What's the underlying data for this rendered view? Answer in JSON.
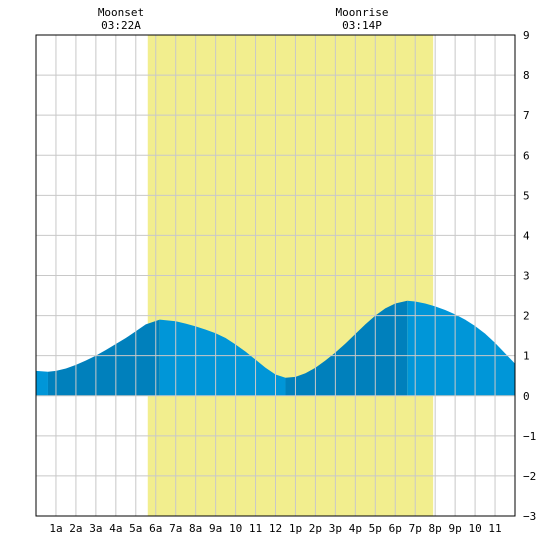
{
  "moon_events": [
    {
      "label": "Moonset",
      "time": "03:22A",
      "hour": 3.37
    },
    {
      "label": "Moonrise",
      "time": "03:14P",
      "hour": 15.23
    }
  ],
  "chart_data": {
    "type": "area",
    "title": "",
    "xlabel": "",
    "ylabel": "",
    "xlim": [
      0,
      24
    ],
    "ylim": [
      -3,
      9
    ],
    "grid": true,
    "x_tick_labels": [
      "1a",
      "2a",
      "3a",
      "4a",
      "5a",
      "6a",
      "7a",
      "8a",
      "9a",
      "10",
      "11",
      "12",
      "1p",
      "2p",
      "3p",
      "4p",
      "5p",
      "6p",
      "7p",
      "8p",
      "9p",
      "10",
      "11"
    ],
    "y_tick_labels": [
      "9",
      "8",
      "7",
      "6",
      "5",
      "4",
      "3",
      "2",
      "1",
      "0",
      "−1",
      "−2",
      "−3"
    ],
    "daylight": {
      "start_hour": 5.6,
      "end_hour": 19.9
    },
    "tide_extremes": [
      {
        "hour": 0.6,
        "height": 0.6
      },
      {
        "hour": 6.2,
        "height": 1.9
      },
      {
        "hour": 12.5,
        "height": 0.45
      },
      {
        "hour": 18.6,
        "height": 2.37
      },
      {
        "hour": 24.0,
        "height": 0.8
      }
    ],
    "series": [
      {
        "values": [
          [
            0.0,
            0.62
          ],
          [
            0.6,
            0.6
          ],
          [
            1.0,
            0.62
          ],
          [
            1.5,
            0.68
          ],
          [
            2.0,
            0.77
          ],
          [
            2.5,
            0.88
          ],
          [
            3.0,
            1.0
          ],
          [
            3.5,
            1.14
          ],
          [
            4.0,
            1.29
          ],
          [
            4.5,
            1.44
          ],
          [
            5.0,
            1.61
          ],
          [
            5.5,
            1.78
          ],
          [
            6.2,
            1.9
          ],
          [
            7.0,
            1.86
          ],
          [
            7.5,
            1.8
          ],
          [
            8.0,
            1.73
          ],
          [
            8.5,
            1.65
          ],
          [
            9.0,
            1.56
          ],
          [
            9.5,
            1.44
          ],
          [
            10.0,
            1.28
          ],
          [
            10.5,
            1.1
          ],
          [
            11.0,
            0.9
          ],
          [
            11.5,
            0.7
          ],
          [
            12.0,
            0.53
          ],
          [
            12.5,
            0.45
          ],
          [
            13.0,
            0.47
          ],
          [
            13.5,
            0.56
          ],
          [
            14.0,
            0.7
          ],
          [
            14.5,
            0.88
          ],
          [
            15.0,
            1.08
          ],
          [
            15.5,
            1.3
          ],
          [
            16.0,
            1.54
          ],
          [
            16.5,
            1.78
          ],
          [
            17.0,
            2.0
          ],
          [
            17.5,
            2.18
          ],
          [
            18.0,
            2.3
          ],
          [
            18.6,
            2.37
          ],
          [
            19.0,
            2.35
          ],
          [
            19.5,
            2.3
          ],
          [
            20.0,
            2.23
          ],
          [
            20.5,
            2.14
          ],
          [
            21.0,
            2.03
          ],
          [
            21.5,
            1.9
          ],
          [
            22.0,
            1.74
          ],
          [
            22.5,
            1.55
          ],
          [
            23.0,
            1.32
          ],
          [
            23.5,
            1.06
          ],
          [
            24.0,
            0.8
          ]
        ]
      }
    ],
    "colors": {
      "daylight": "#f2ee8e",
      "tide_light": "#0096d8",
      "tide_dark": "#0080bc",
      "grid": "#c8c8c8",
      "frame": "#000000"
    }
  }
}
